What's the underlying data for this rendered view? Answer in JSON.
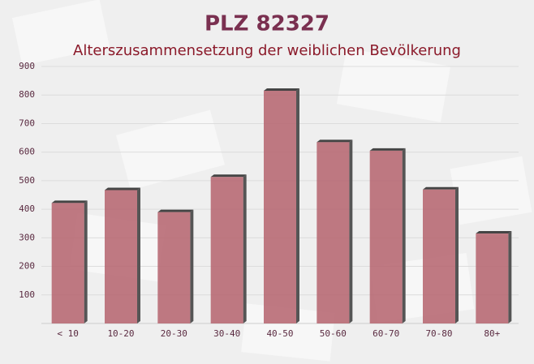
{
  "chart_data": {
    "type": "bar",
    "title": "PLZ 82327",
    "subtitle": "Alterszusammensetzung der weiblichen Bevölkerung",
    "categories": [
      "< 10",
      "10-20",
      "20-30",
      "30-40",
      "40-50",
      "50-60",
      "60-70",
      "70-80",
      "80+"
    ],
    "values": [
      422,
      467,
      390,
      513,
      815,
      635,
      605,
      469,
      315
    ],
    "color": "#b5636d",
    "ylim": [
      0,
      900
    ],
    "yticks": [
      100,
      200,
      300,
      400,
      500,
      600,
      700,
      800,
      900
    ],
    "grid": true
  }
}
